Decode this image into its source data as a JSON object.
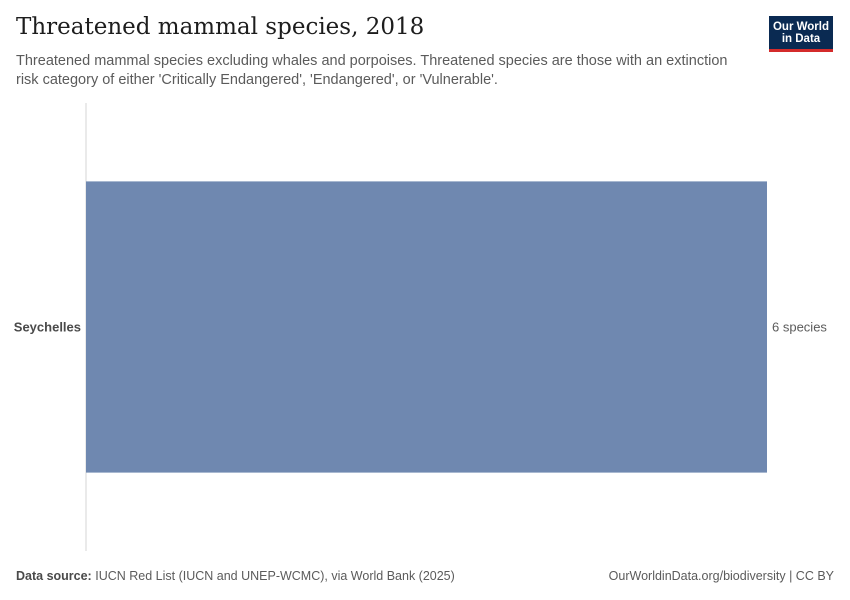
{
  "header": {
    "title": "Threatened mammal species, 2018",
    "subtitle": "Threatened mammal species excluding whales and porpoises. Threatened species are those with an extinction risk category of either 'Critically Endangered', 'Endangered', or 'Vulnerable'."
  },
  "logo": {
    "line1": "Our World",
    "line2": "in Data"
  },
  "chart_data": {
    "type": "bar",
    "orientation": "horizontal",
    "title": "Threatened mammal species, 2018",
    "categories": [
      "Seychelles"
    ],
    "values": [
      6
    ],
    "value_labels": [
      "6 species"
    ],
    "unit": "species",
    "xlim": [
      0,
      6
    ],
    "grid": false,
    "bar_color": "#6f88b0"
  },
  "footer": {
    "source_label": "Data source:",
    "source_text": "IUCN Red List (IUCN and UNEP-WCMC), via World Bank (2025)",
    "right_text": "OurWorldinData.org/biodiversity | CC BY"
  }
}
